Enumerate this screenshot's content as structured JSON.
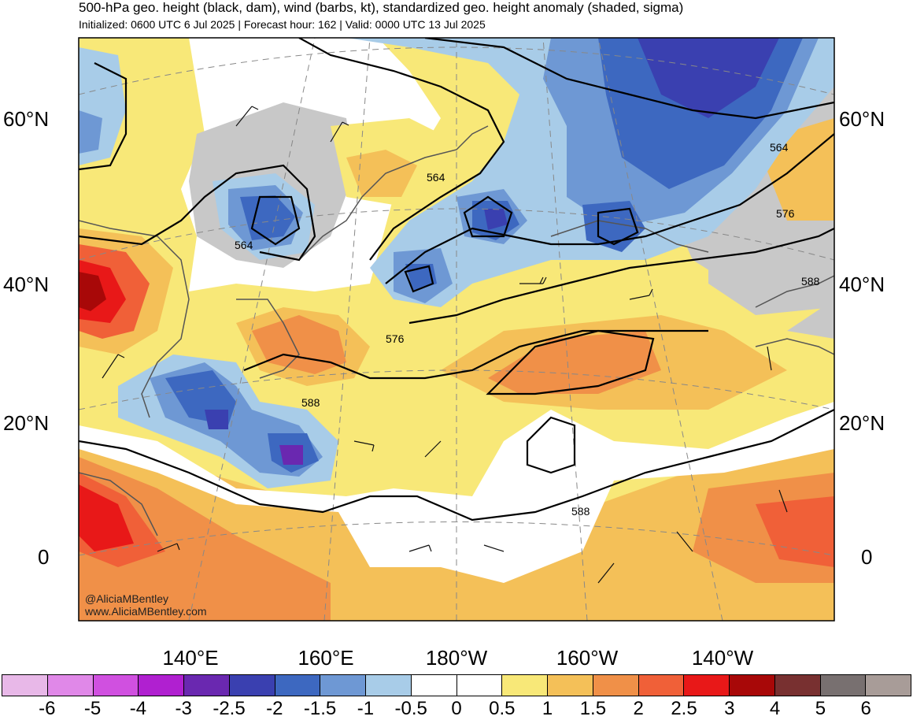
{
  "title": "500-hPa geo. height (black, dam), wind (barbs, kt), standardized geo. height anomaly (shaded, sigma)",
  "subtitle": "Initialized: 0600 UTC 6 Jul 2025 | Forecast hour: 162 | Valid: 0000 UTC 13 Jul 2025",
  "latitude_labels": [
    "60°N",
    "40°N",
    "20°N",
    "0"
  ],
  "longitude_labels": [
    "140°E",
    "160°E",
    "180°W",
    "160°W",
    "140°W"
  ],
  "contour_labels": [
    "564",
    "564",
    "576",
    "576",
    "564",
    "588",
    "588",
    "588"
  ],
  "credit": {
    "handle": "@AliciaMBentley",
    "site": "www.AliciaMBentley.com"
  },
  "colorbar": {
    "tick_labels": [
      "-6",
      "-5",
      "-4",
      "-3",
      "-2.5",
      "-2",
      "-1.5",
      "-1",
      "-0.5",
      "0",
      "0.5",
      "1",
      "1.5",
      "2",
      "2.5",
      "3",
      "4",
      "5",
      "6"
    ],
    "colors": [
      "#e8b8e8",
      "#e088e8",
      "#d050e0",
      "#b020d0",
      "#6a28b0",
      "#3a40b0",
      "#3d68c0",
      "#6e98d4",
      "#a8cce8",
      "#ffffff",
      "#ffffff",
      "#f8e878",
      "#f4c058",
      "#f09048",
      "#f06038",
      "#e81818",
      "#a80808",
      "#783030",
      "#787070",
      "#a89c98"
    ]
  },
  "map_colors": {
    "ocean_neutral": "#ffffff",
    "land_neutral": "#c8c8c8",
    "positive_1": "#f8e878",
    "positive_2": "#f4c058",
    "positive_3": "#f09048",
    "positive_4": "#f06038",
    "positive_5": "#e81818",
    "negative_1": "#a8cce8",
    "negative_2": "#6e98d4",
    "negative_3": "#3d68c0",
    "negative_4": "#3a40b0",
    "negative_5": "#6a28b0"
  }
}
